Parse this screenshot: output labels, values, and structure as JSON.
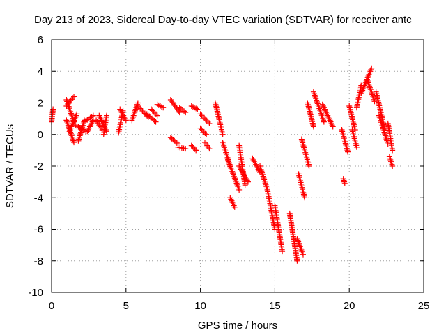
{
  "chart_data": {
    "type": "scatter",
    "title": "Day 213 of 2023, Sidereal Day-to-day VTEC variation (SDTVAR) for receiver antc",
    "xlabel": "GPS time / hours",
    "ylabel": "SDTVAR / TECUs",
    "xlim": [
      0,
      25
    ],
    "ylim": [
      -10,
      6
    ],
    "xticks": [
      0,
      5,
      10,
      15,
      20,
      25
    ],
    "yticks": [
      -10,
      -8,
      -6,
      -4,
      -2,
      0,
      2,
      4,
      6
    ],
    "grid": true,
    "marker": "+",
    "series": [
      {
        "name": "SDTVAR",
        "color": "#ff0000",
        "approximate_segments": [
          {
            "x": [
              0.0,
              0.1
            ],
            "y": [
              0.8,
              1.6
            ]
          },
          {
            "x": [
              1.0,
              1.5
            ],
            "y": [
              2.2,
              0.8
            ]
          },
          {
            "x": [
              1.5,
              1.0
            ],
            "y": [
              2.4,
              1.8
            ]
          },
          {
            "x": [
              1.0,
              1.5
            ],
            "y": [
              0.9,
              -0.5
            ]
          },
          {
            "x": [
              1.2,
              1.7
            ],
            "y": [
              0.2,
              1.3
            ]
          },
          {
            "x": [
              1.6,
              2.3
            ],
            "y": [
              0.6,
              0.2
            ]
          },
          {
            "x": [
              1.8,
              2.2
            ],
            "y": [
              -0.4,
              0.9
            ]
          },
          {
            "x": [
              2.2,
              2.8
            ],
            "y": [
              0.8,
              1.2
            ]
          },
          {
            "x": [
              2.4,
              2.8
            ],
            "y": [
              0.2,
              0.9
            ]
          },
          {
            "x": [
              3.0,
              3.4
            ],
            "y": [
              0.9,
              0.3
            ]
          },
          {
            "x": [
              3.2,
              3.7
            ],
            "y": [
              1.2,
              0.2
            ]
          },
          {
            "x": [
              3.5,
              3.7
            ],
            "y": [
              0.0,
              1.2
            ]
          },
          {
            "x": [
              4.5,
              4.8
            ],
            "y": [
              0.1,
              1.5
            ]
          },
          {
            "x": [
              4.6,
              5.0
            ],
            "y": [
              1.6,
              0.9
            ]
          },
          {
            "x": [
              5.4,
              5.8
            ],
            "y": [
              0.9,
              2.0
            ]
          },
          {
            "x": [
              5.8,
              6.5
            ],
            "y": [
              1.8,
              1.1
            ]
          },
          {
            "x": [
              6.4,
              7.0
            ],
            "y": [
              1.3,
              0.8
            ]
          },
          {
            "x": [
              6.7,
              7.1
            ],
            "y": [
              1.6,
              1.2
            ]
          },
          {
            "x": [
              7.1,
              7.5
            ],
            "y": [
              1.9,
              1.7
            ]
          },
          {
            "x": [
              8.0,
              8.6
            ],
            "y": [
              2.2,
              1.4
            ]
          },
          {
            "x": [
              8.6,
              9.0
            ],
            "y": [
              1.7,
              1.4
            ]
          },
          {
            "x": [
              8.0,
              8.5
            ],
            "y": [
              -0.2,
              -0.6
            ]
          },
          {
            "x": [
              8.5,
              9.0
            ],
            "y": [
              -0.8,
              -0.9
            ]
          },
          {
            "x": [
              9.4,
              9.8
            ],
            "y": [
              1.8,
              1.6
            ]
          },
          {
            "x": [
              9.4,
              9.7
            ],
            "y": [
              -0.7,
              -1.0
            ]
          },
          {
            "x": [
              10.0,
              10.6
            ],
            "y": [
              1.3,
              0.7
            ]
          },
          {
            "x": [
              10.0,
              10.4
            ],
            "y": [
              0.4,
              0.0
            ]
          },
          {
            "x": [
              10.3,
              10.6
            ],
            "y": [
              -0.5,
              -0.9
            ]
          },
          {
            "x": [
              11.0,
              11.5
            ],
            "y": [
              2.0,
              0.0
            ]
          },
          {
            "x": [
              11.5,
              12.0
            ],
            "y": [
              -0.5,
              -2.0
            ]
          },
          {
            "x": [
              11.8,
              12.6
            ],
            "y": [
              -1.5,
              -3.5
            ]
          },
          {
            "x": [
              12.0,
              12.3
            ],
            "y": [
              -4.0,
              -4.6
            ]
          },
          {
            "x": [
              12.6,
              13.0
            ],
            "y": [
              -0.7,
              -3.2
            ]
          },
          {
            "x": [
              12.6,
              13.2
            ],
            "y": [
              -2.0,
              -3.0
            ]
          },
          {
            "x": [
              13.5,
              14.0
            ],
            "y": [
              -1.5,
              -2.4
            ]
          },
          {
            "x": [
              14.0,
              14.5
            ],
            "y": [
              -2.0,
              -3.5
            ]
          },
          {
            "x": [
              14.5,
              15.0
            ],
            "y": [
              -3.5,
              -6.0
            ]
          },
          {
            "x": [
              15.0,
              15.5
            ],
            "y": [
              -4.5,
              -7.4
            ]
          },
          {
            "x": [
              16.0,
              16.5
            ],
            "y": [
              -5.0,
              -8.0
            ]
          },
          {
            "x": [
              16.5,
              16.9
            ],
            "y": [
              -6.6,
              -7.6
            ]
          },
          {
            "x": [
              16.6,
              17.0
            ],
            "y": [
              -2.5,
              -4.0
            ]
          },
          {
            "x": [
              16.8,
              17.3
            ],
            "y": [
              -0.3,
              -2.0
            ]
          },
          {
            "x": [
              17.2,
              17.6
            ],
            "y": [
              2.0,
              0.5
            ]
          },
          {
            "x": [
              17.6,
              18.3
            ],
            "y": [
              2.7,
              0.8
            ]
          },
          {
            "x": [
              18.2,
              18.9
            ],
            "y": [
              1.9,
              0.5
            ]
          },
          {
            "x": [
              19.5,
              19.9
            ],
            "y": [
              0.3,
              -1.1
            ]
          },
          {
            "x": [
              19.6,
              19.7
            ],
            "y": [
              -2.8,
              -3.1
            ]
          },
          {
            "x": [
              20.0,
              20.4
            ],
            "y": [
              1.8,
              0.3
            ]
          },
          {
            "x": [
              20.2,
              20.5
            ],
            "y": [
              0.3,
              -0.8
            ]
          },
          {
            "x": [
              20.5,
              20.8
            ],
            "y": [
              1.7,
              3.1
            ]
          },
          {
            "x": [
              20.8,
              21.5
            ],
            "y": [
              2.6,
              4.2
            ]
          },
          {
            "x": [
              21.2,
              21.7
            ],
            "y": [
              3.5,
              2.1
            ]
          },
          {
            "x": [
              21.8,
              22.4
            ],
            "y": [
              2.7,
              0.3
            ]
          },
          {
            "x": [
              22.0,
              22.6
            ],
            "y": [
              1.2,
              -0.6
            ]
          },
          {
            "x": [
              22.6,
              22.9
            ],
            "y": [
              0.7,
              -1.0
            ]
          },
          {
            "x": [
              22.7,
              22.9
            ],
            "y": [
              -1.4,
              -2.0
            ]
          }
        ]
      }
    ]
  }
}
